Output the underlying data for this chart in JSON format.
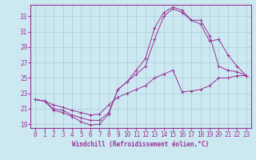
{
  "xlabel": "Windchill (Refroidissement éolien,°C)",
  "background_color": "#cce8f0",
  "grid_color": "#aaccdd",
  "line_color": "#993399",
  "xlim": [
    -0.5,
    23.5
  ],
  "ylim": [
    18.5,
    34.5
  ],
  "xticks": [
    0,
    1,
    2,
    3,
    4,
    5,
    6,
    7,
    8,
    9,
    10,
    11,
    12,
    13,
    14,
    15,
    16,
    17,
    18,
    19,
    20,
    21,
    22,
    23
  ],
  "yticks": [
    19,
    21,
    23,
    25,
    27,
    29,
    31,
    33
  ],
  "line1_x": [
    0,
    1,
    2,
    3,
    4,
    5,
    6,
    7,
    8,
    9,
    10,
    11,
    12,
    13,
    14,
    15,
    16,
    17,
    18,
    19,
    20,
    21,
    22,
    23
  ],
  "line1_y": [
    22.2,
    22.0,
    20.8,
    20.5,
    20.0,
    19.3,
    18.9,
    19.0,
    20.3,
    23.5,
    24.5,
    26.0,
    27.5,
    31.5,
    33.5,
    34.2,
    33.8,
    32.5,
    32.5,
    30.5,
    26.5,
    26.0,
    25.8,
    25.3
  ],
  "line2_x": [
    0,
    1,
    2,
    3,
    4,
    5,
    6,
    7,
    8,
    9,
    10,
    11,
    12,
    13,
    14,
    15,
    16,
    17,
    18,
    19,
    20,
    21,
    22,
    23
  ],
  "line2_y": [
    22.2,
    22.0,
    21.0,
    20.8,
    20.2,
    19.8,
    19.5,
    19.5,
    20.5,
    23.5,
    24.5,
    25.5,
    26.5,
    30.0,
    33.0,
    34.0,
    33.5,
    32.5,
    32.0,
    29.8,
    30.0,
    28.0,
    26.5,
    25.3
  ],
  "line3_x": [
    0,
    1,
    2,
    3,
    4,
    5,
    6,
    7,
    8,
    9,
    10,
    11,
    12,
    13,
    14,
    15,
    16,
    17,
    18,
    19,
    20,
    21,
    22,
    23
  ],
  "line3_y": [
    22.2,
    22.0,
    21.5,
    21.2,
    20.8,
    20.5,
    20.2,
    20.3,
    21.5,
    22.5,
    23.0,
    23.5,
    24.0,
    25.0,
    25.5,
    26.0,
    23.2,
    23.3,
    23.5,
    24.0,
    25.0,
    25.0,
    25.3,
    25.3
  ]
}
